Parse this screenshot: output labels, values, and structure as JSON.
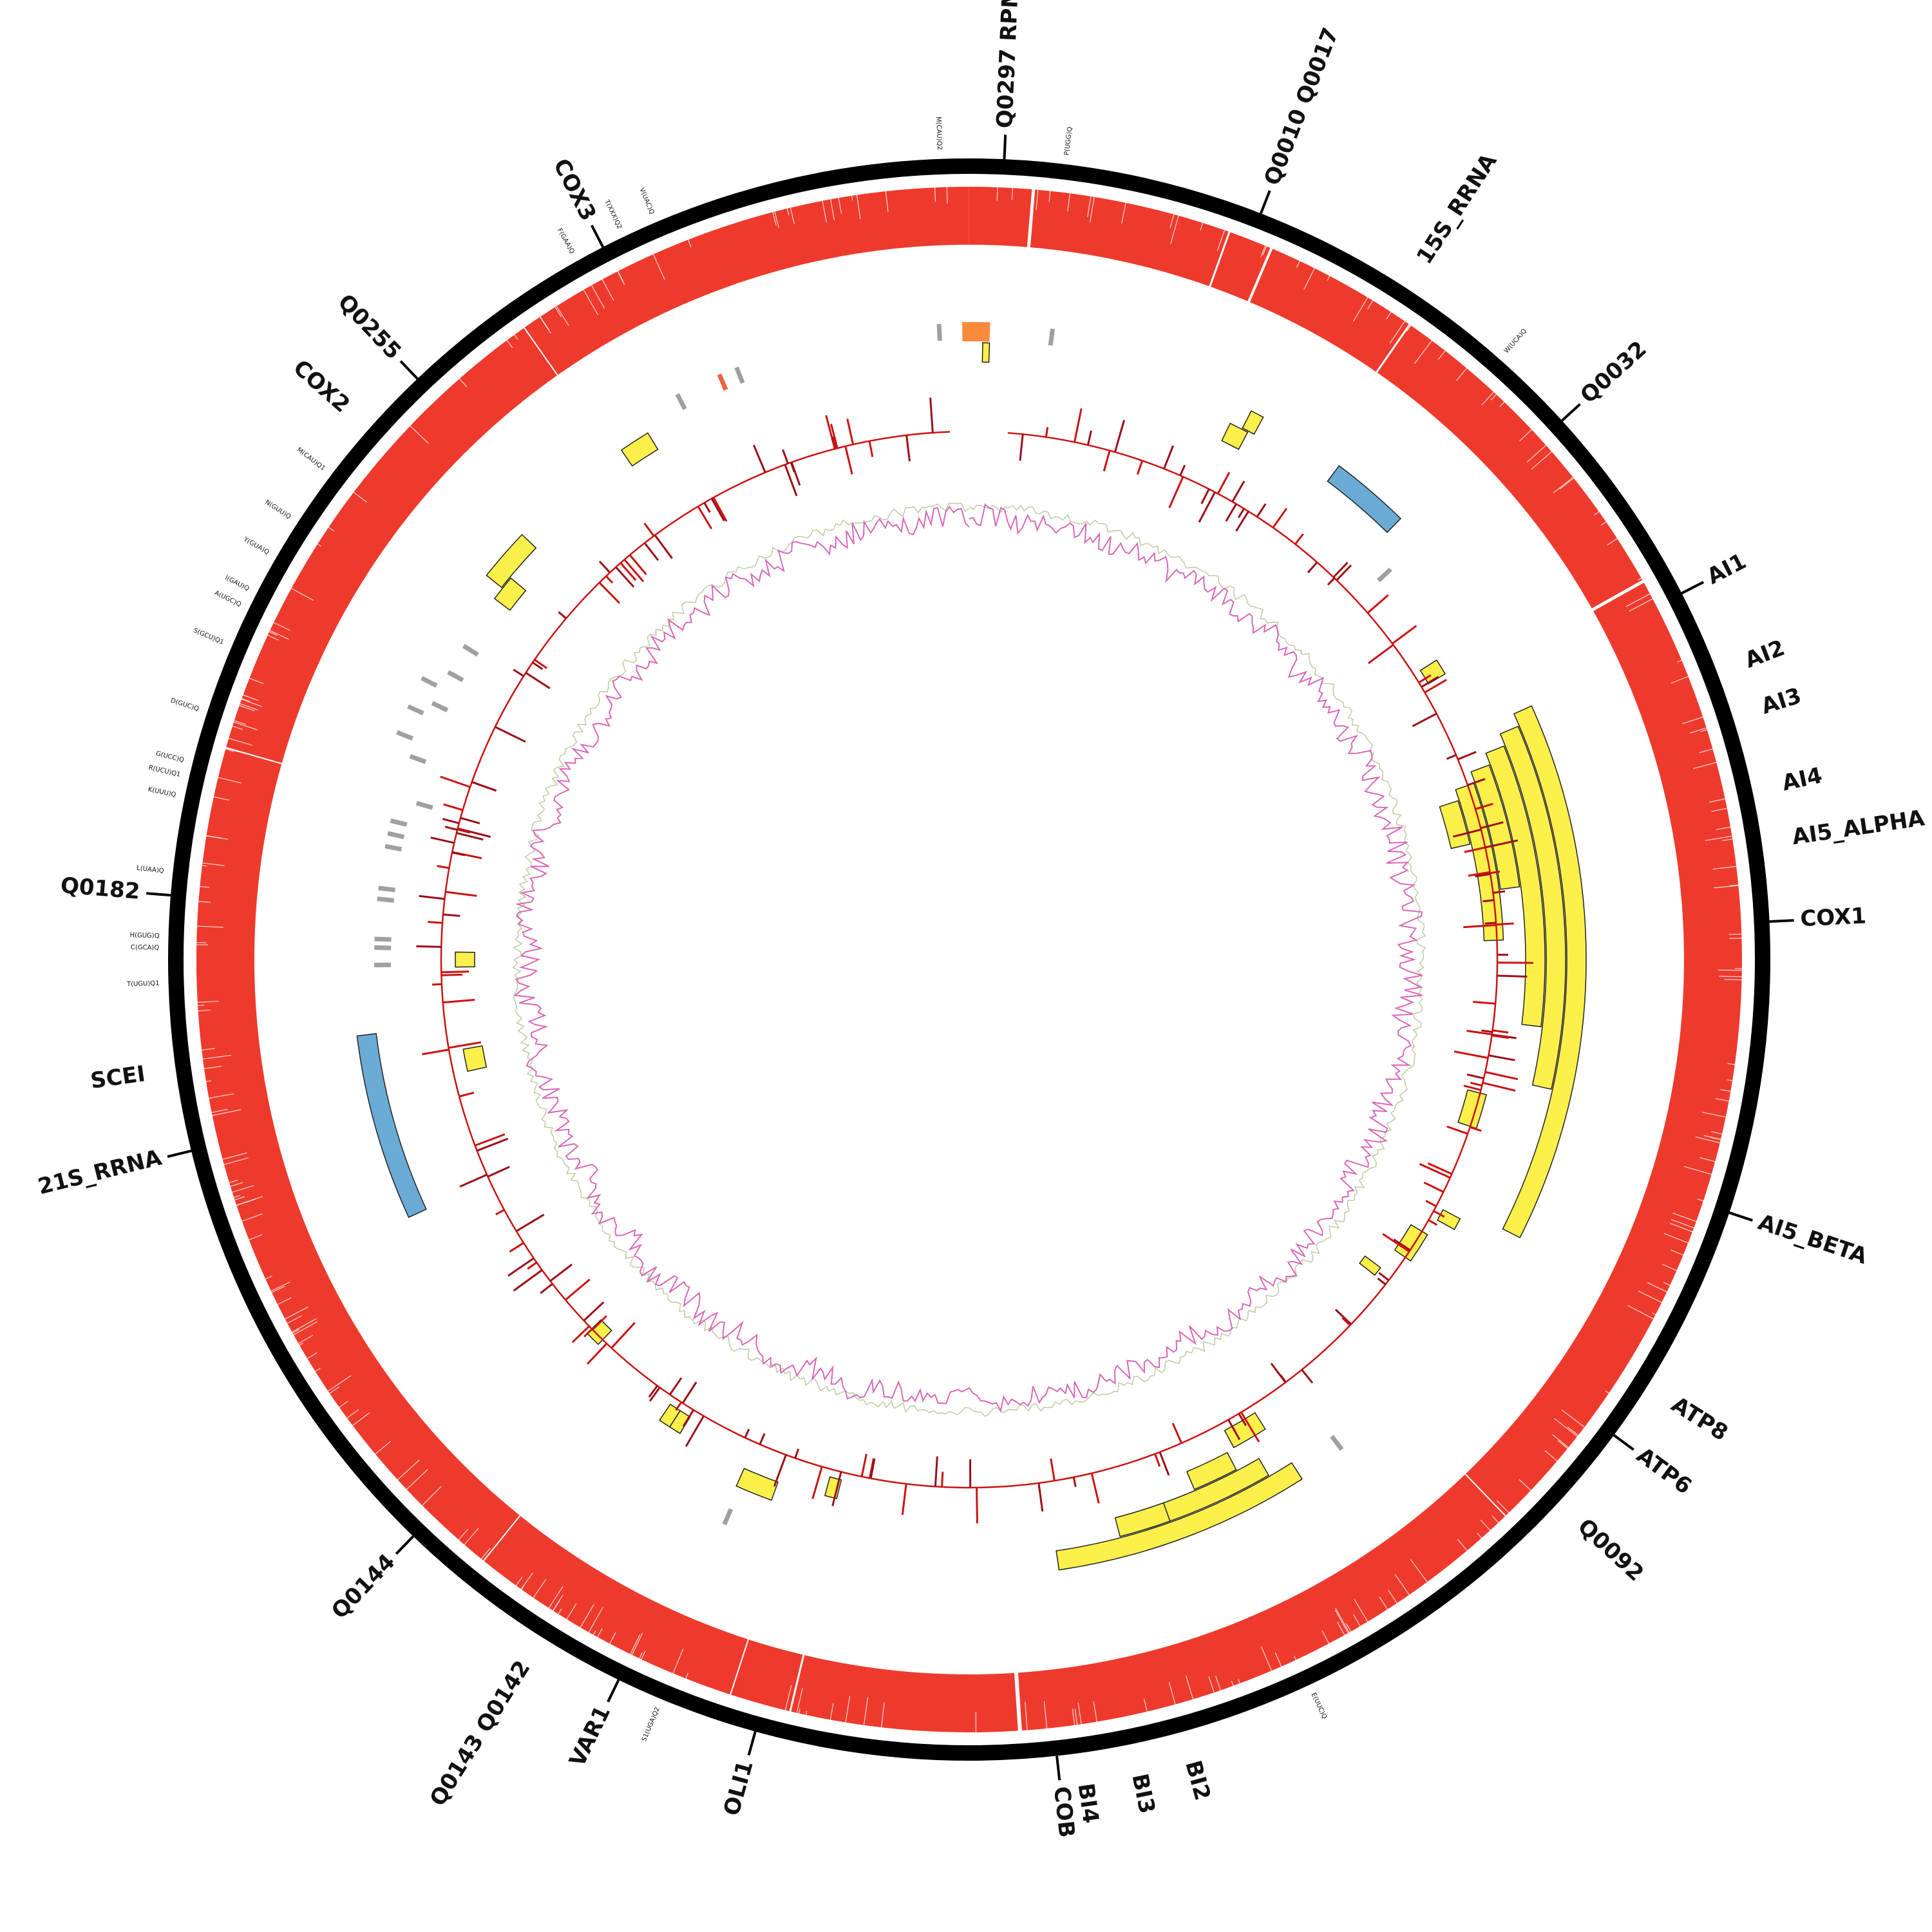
{
  "genome": {
    "total": 86000,
    "genes": [
      {
        "label": "Q0297 RPM1",
        "pos": 600,
        "tick": true
      },
      {
        "label": "Q0010 Q0017",
        "pos": 5100,
        "tick": true
      },
      {
        "label": "15S_RRNA",
        "pos": 7900,
        "tick": false
      },
      {
        "label": "Q0032",
        "pos": 11400,
        "tick": true
      },
      {
        "label": "AI1",
        "pos": 15000,
        "tick": true
      },
      {
        "label": "AI2",
        "pos": 16500,
        "tick": false
      },
      {
        "label": "AI3",
        "pos": 17300,
        "tick": false
      },
      {
        "label": "AI4",
        "pos": 18600,
        "tick": false
      },
      {
        "label": "AI5_ALPHA",
        "pos": 19500,
        "tick": false
      },
      {
        "label": "COX1",
        "pos": 20850,
        "tick": true
      },
      {
        "label": "AI5_BETA",
        "pos": 25900,
        "tick": true
      },
      {
        "label": "ATP8",
        "pos": 29200,
        "tick": false
      },
      {
        "label": "ATP6",
        "pos": 30200,
        "tick": true
      },
      {
        "label": "Q0092",
        "pos": 31700,
        "tick": false
      },
      {
        "label": "BI2",
        "pos": 39300,
        "tick": false
      },
      {
        "label": "BI3",
        "pos": 40200,
        "tick": false
      },
      {
        "label": "BI4",
        "pos": 41100,
        "tick": false
      },
      {
        "label": "COB",
        "pos": 41500,
        "tick": true
      },
      {
        "label": "OLI1",
        "pos": 46700,
        "tick": true
      },
      {
        "label": "VAR1",
        "pos": 49200,
        "tick": true
      },
      {
        "label": "Q0143 Q0142",
        "pos": 50700,
        "tick": false
      },
      {
        "label": "Q0144",
        "pos": 53500,
        "tick": true
      },
      {
        "label": "21S_RRNA",
        "pos": 61200,
        "tick": true
      },
      {
        "label": "SCEI",
        "pos": 62600,
        "tick": false
      },
      {
        "label": "Q0182",
        "pos": 65600,
        "tick": true
      },
      {
        "label": "COX2",
        "pos": 74400,
        "tick": false
      },
      {
        "label": "Q0255",
        "pos": 75600,
        "tick": true
      },
      {
        "label": "COX3",
        "pos": 79500,
        "tick": true
      }
    ],
    "trnas": [
      {
        "label": "M(CAU)Q2",
        "pos": 85500
      },
      {
        "label": "P(UGG)Q",
        "pos": 1650
      },
      {
        "label": "W(UCA)Q",
        "pos": 9900
      },
      {
        "label": "E(UUC)Q",
        "pos": 37000
      },
      {
        "label": "S1(UGA)Q2",
        "pos": 48400
      },
      {
        "label": "T(UGU)Q1",
        "pos": 64100
      },
      {
        "label": "C(GCA)Q",
        "pos": 64700
      },
      {
        "label": "H(GUG)Q",
        "pos": 64900
      },
      {
        "label": "L(UAA)Q",
        "pos": 66000
      },
      {
        "label": "K(UUU)Q",
        "pos": 67300
      },
      {
        "label": "R(UCU)Q1",
        "pos": 67650
      },
      {
        "label": "G(UCC)Q",
        "pos": 67900
      },
      {
        "label": "D(GUC)Q",
        "pos": 68800
      },
      {
        "label": "S(GCU)Q1",
        "pos": 70000
      },
      {
        "label": "A(UGC)Q",
        "pos": 70700
      },
      {
        "label": "I(GAU)Q",
        "pos": 71000
      },
      {
        "label": "Y(GUA)Q",
        "pos": 71700
      },
      {
        "label": "N(GUU)Q",
        "pos": 72400
      },
      {
        "label": "M(CAU)Q1",
        "pos": 73400
      },
      {
        "label": "F(GAA)Q",
        "pos": 79000
      },
      {
        "label": "T(XXX)Q2",
        "pos": 79900
      },
      {
        "label": "V(UAC)Q",
        "pos": 80500
      }
    ],
    "features": [
      {
        "type": "orange",
        "start": 85850,
        "end": 450,
        "lane": 0
      },
      {
        "type": "gray",
        "start": 85300,
        "end": 85400,
        "lane": 0
      },
      {
        "type": "gray",
        "start": 1750,
        "end": 1850,
        "lane": 0
      },
      {
        "type": "yellow",
        "start": 300,
        "end": 450,
        "lane": 1
      },
      {
        "type": "yellow",
        "start": 6500,
        "end": 6800,
        "lane": 1
      },
      {
        "type": "yellow",
        "start": 6200,
        "end": 6650,
        "lane": 2
      },
      {
        "type": "blue",
        "start": 8800,
        "end": 10600,
        "lane": 1
      },
      {
        "type": "gray",
        "start": 11200,
        "end": 11350,
        "lane": 3
      },
      {
        "type": "yellow",
        "start": 13700,
        "end": 14100,
        "lane": 4
      },
      {
        "type": "yellow",
        "start": 15700,
        "end": 27900,
        "lane": 1
      },
      {
        "type": "yellow",
        "start": 16000,
        "end": 24500,
        "lane": 2
      },
      {
        "type": "yellow",
        "start": 16300,
        "end": 23100,
        "lane": 3
      },
      {
        "type": "yellow",
        "start": 16600,
        "end": 19700,
        "lane": 4
      },
      {
        "type": "yellow",
        "start": 16900,
        "end": 21000,
        "lane": 5
      },
      {
        "type": "yellow",
        "start": 17200,
        "end": 18400,
        "lane": 6
      },
      {
        "type": "yellow",
        "start": 25000,
        "end": 25900,
        "lane": 5
      },
      {
        "type": "yellow",
        "start": 28150,
        "end": 28450,
        "lane": 4
      },
      {
        "type": "yellow",
        "start": 28900,
        "end": 29700,
        "lane": 5
      },
      {
        "type": "yellow",
        "start": 30300,
        "end": 30550,
        "lane": 6
      },
      {
        "type": "gray",
        "start": 34000,
        "end": 34200,
        "lane": 1
      },
      {
        "type": "yellow",
        "start": 35200,
        "end": 41000,
        "lane": 1
      },
      {
        "type": "yellow",
        "start": 35800,
        "end": 38800,
        "lane": 2
      },
      {
        "type": "yellow",
        "start": 36400,
        "end": 37500,
        "lane": 3
      },
      {
        "type": "yellow",
        "start": 38300,
        "end": 39500,
        "lane": 2
      },
      {
        "type": "yellow",
        "start": 35300,
        "end": 36200,
        "lane": 4
      },
      {
        "type": "gray",
        "start": 48500,
        "end": 48700,
        "lane": 1
      },
      {
        "type": "yellow",
        "start": 46300,
        "end": 46600,
        "lane": 4
      },
      {
        "type": "yellow",
        "start": 47800,
        "end": 48700,
        "lane": 3
      },
      {
        "type": "yellow",
        "start": 50500,
        "end": 50800,
        "lane": 4
      },
      {
        "type": "yellow",
        "start": 50800,
        "end": 51100,
        "lane": 4
      },
      {
        "type": "yellow",
        "start": 53500,
        "end": 53900,
        "lane": 5
      },
      {
        "type": "blue",
        "start": 58600,
        "end": 62800,
        "lane": 1
      },
      {
        "type": "yellow",
        "start": 61500,
        "end": 62100,
        "lane": 6
      },
      {
        "type": "yellow",
        "start": 64300,
        "end": 64700,
        "lane": 6
      },
      {
        "type": "gray",
        "start": 64300,
        "end": 64450,
        "lane": 2
      },
      {
        "type": "gray",
        "start": 64700,
        "end": 64850,
        "lane": 2
      },
      {
        "type": "gray",
        "start": 64900,
        "end": 65050,
        "lane": 2
      },
      {
        "type": "gray",
        "start": 65800,
        "end": 66000,
        "lane": 2
      },
      {
        "type": "gray",
        "start": 66050,
        "end": 66250,
        "lane": 2
      },
      {
        "type": "gray",
        "start": 67000,
        "end": 67250,
        "lane": 2
      },
      {
        "type": "gray",
        "start": 67300,
        "end": 67550,
        "lane": 2
      },
      {
        "type": "gray",
        "start": 67600,
        "end": 67850,
        "lane": 2
      },
      {
        "type": "gray",
        "start": 68200,
        "end": 68350,
        "lane": 3
      },
      {
        "type": "gray",
        "start": 69200,
        "end": 69350,
        "lane": 2
      },
      {
        "type": "gray",
        "start": 69600,
        "end": 69750,
        "lane": 1
      },
      {
        "type": "gray",
        "start": 70200,
        "end": 70400,
        "lane": 1
      },
      {
        "type": "gray",
        "start": 70500,
        "end": 70700,
        "lane": 2
      },
      {
        "type": "gray",
        "start": 70900,
        "end": 71100,
        "lane": 1
      },
      {
        "type": "gray",
        "start": 71300,
        "end": 71500,
        "lane": 2
      },
      {
        "type": "gray",
        "start": 72000,
        "end": 72200,
        "lane": 2
      },
      {
        "type": "yellow",
        "start": 73400,
        "end": 74000,
        "lane": 2
      },
      {
        "type": "yellow",
        "start": 73700,
        "end": 74900,
        "lane": 1
      },
      {
        "type": "yellow",
        "start": 77800,
        "end": 78500,
        "lane": 1
      },
      {
        "type": "gray",
        "start": 79400,
        "end": 79550,
        "lane": 0
      },
      {
        "type": "tomato",
        "start": 80400,
        "end": 80550,
        "lane": 0
      },
      {
        "type": "gray",
        "start": 80800,
        "end": 80950,
        "lane": 0
      }
    ]
  },
  "colors": {
    "outer_ring": "#000000",
    "coverage": "#ee3a2c",
    "gene_feature": "#fbef4a",
    "rrna_feature": "#6aabd6",
    "trna_feature": "#a0a0a0",
    "orange_feature": "#fb8a3c",
    "tomato_feature": "#f0623f",
    "snp_track": "#cc1111",
    "snp_dark": "#9b0e18",
    "gc_skew": "#da67b6",
    "gc_content": "#8fa863"
  },
  "icons": {
    "plot": "circular-genome-map-icon"
  }
}
